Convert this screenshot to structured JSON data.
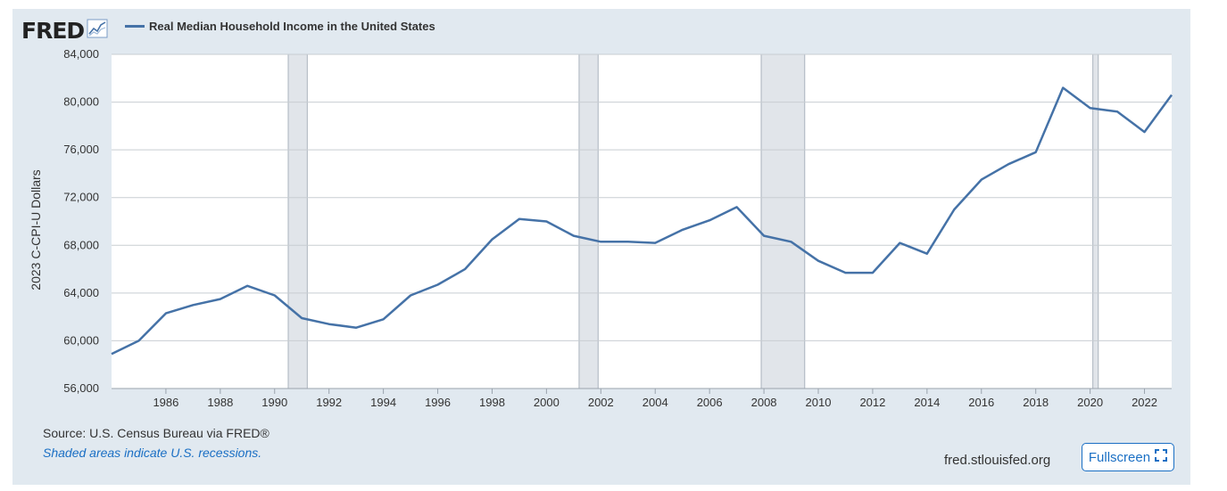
{
  "header": {
    "logo_text": "FRED",
    "logo_icon": "trend-chart-icon",
    "legend_label": "Real Median Household Income in the United States",
    "series_color": "#4572a7"
  },
  "footer": {
    "source": "Source: U.S. Census Bureau via FRED®",
    "recession_note": "Shaded areas indicate U.S. recessions.",
    "site_url": "fred.stlouisfed.org",
    "fullscreen_label": "Fullscreen",
    "fullscreen_icon": "fullscreen-icon"
  },
  "colors": {
    "panel_bg": "#e1e9f0",
    "plot_bg": "#ffffff",
    "recession_fill": "#e1e5ea",
    "link_blue": "#1a6fc4"
  },
  "chart_data": {
    "type": "line",
    "ylabel": "2023 C-CPI-U Dollars",
    "ylim": [
      56000,
      84000
    ],
    "xlim": [
      1984,
      2023
    ],
    "yticks": [
      56000,
      60000,
      64000,
      68000,
      72000,
      76000,
      80000,
      84000
    ],
    "ytick_labels": [
      "56,000",
      "60,000",
      "64,000",
      "68,000",
      "72,000",
      "76,000",
      "80,000",
      "84,000"
    ],
    "xticks": [
      1986,
      1988,
      1990,
      1992,
      1994,
      1996,
      1998,
      2000,
      2002,
      2004,
      2006,
      2008,
      2010,
      2012,
      2014,
      2016,
      2018,
      2020,
      2022
    ],
    "xtick_labels": [
      "1986",
      "1988",
      "1990",
      "1992",
      "1994",
      "1996",
      "1998",
      "2000",
      "2002",
      "2004",
      "2006",
      "2008",
      "2010",
      "2012",
      "2014",
      "2016",
      "2018",
      "2020",
      "2022"
    ],
    "grid": true,
    "recessions": [
      [
        1990.5,
        1991.2
      ],
      [
        2001.2,
        2001.9
      ],
      [
        2007.9,
        2009.5
      ],
      [
        2020.1,
        2020.3
      ]
    ],
    "series": [
      {
        "name": "Real Median Household Income in the United States",
        "x": [
          1984,
          1985,
          1986,
          1987,
          1988,
          1989,
          1990,
          1991,
          1992,
          1993,
          1994,
          1995,
          1996,
          1997,
          1998,
          1999,
          2000,
          2001,
          2002,
          2003,
          2004,
          2005,
          2006,
          2007,
          2008,
          2009,
          2010,
          2011,
          2012,
          2013,
          2014,
          2015,
          2016,
          2017,
          2018,
          2019,
          2020,
          2021,
          2022,
          2023
        ],
        "y": [
          58900,
          60000,
          62300,
          63000,
          63500,
          64600,
          63800,
          61900,
          61400,
          61100,
          61800,
          63800,
          64700,
          66000,
          68500,
          70200,
          70000,
          68800,
          68300,
          68300,
          68200,
          69300,
          70100,
          71200,
          68800,
          68300,
          66700,
          65700,
          65700,
          68200,
          67300,
          71000,
          73500,
          74800,
          75800,
          81200,
          79500,
          79200,
          77500,
          80600
        ]
      }
    ]
  }
}
